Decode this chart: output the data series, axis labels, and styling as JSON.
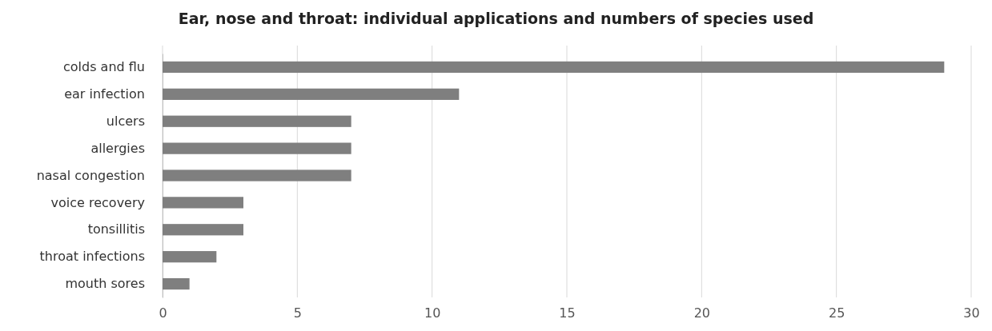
{
  "chart_data": {
    "type": "bar",
    "orientation": "horizontal",
    "title": "Ear, nose and throat: individual applications and numbers of species used",
    "categories": [
      "colds and flu",
      "ear infection",
      "ulcers",
      "allergies",
      "nasal congestion",
      "voice recovery",
      "tonsillitis",
      "throat infections",
      "mouth sores"
    ],
    "values": [
      29,
      11,
      7,
      7,
      7,
      3,
      3,
      2,
      1
    ],
    "color": "#7f7f7f",
    "xlim": [
      0,
      30
    ],
    "xticks": [
      0,
      5,
      10,
      15,
      20,
      25,
      30
    ],
    "grid": "x"
  }
}
